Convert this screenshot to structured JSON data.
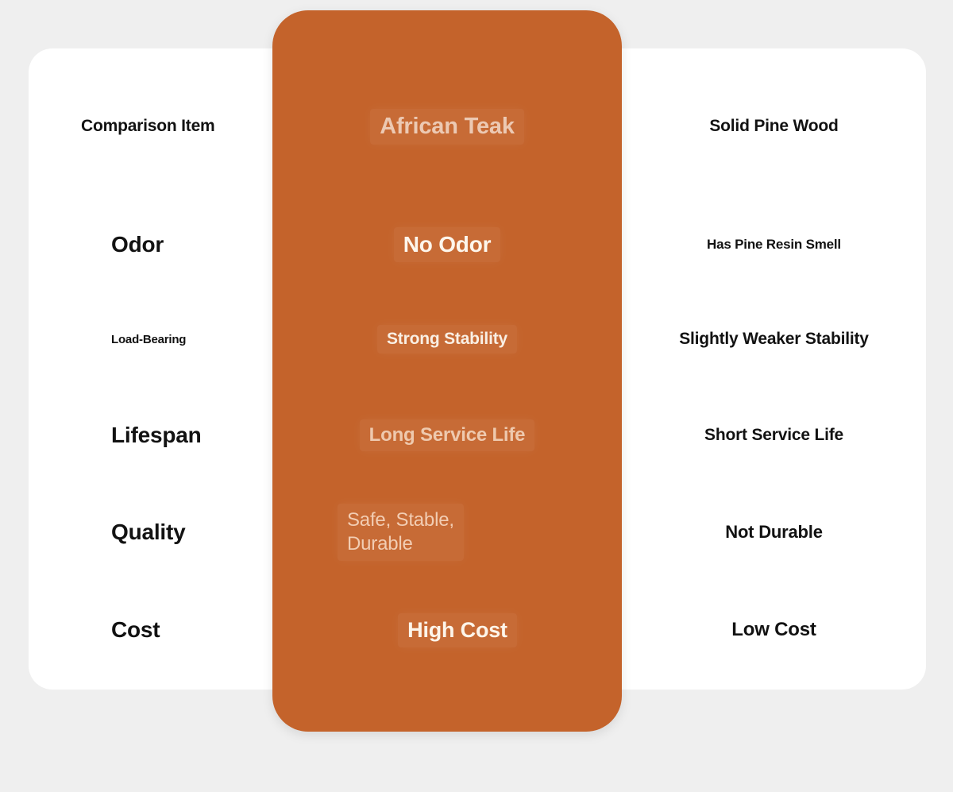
{
  "colors": {
    "background": "#efefef",
    "card": "#ffffff",
    "accent_orange": "#c4632b",
    "teak_text_peach": "#ecc9b3",
    "teak_text_white": "#fdf6ec",
    "dark_text": "#121212"
  },
  "table": {
    "header": {
      "item_col": "Comparison Item",
      "teak_col": "African Teak",
      "pine_col": "Solid Pine Wood"
    },
    "rows": [
      {
        "item": "Odor",
        "teak": "No Odor",
        "pine": "Has Pine Resin Smell"
      },
      {
        "item": "Load-Bearing",
        "teak": "Strong Stability",
        "pine": "Slightly Weaker Stability"
      },
      {
        "item": "Lifespan",
        "teak": "Long Service Life",
        "pine": "Short Service Life"
      },
      {
        "item": "Quality",
        "teak": "Safe, Stable,\nDurable",
        "pine": "Not Durable"
      },
      {
        "item": "Cost",
        "teak": "High Cost",
        "pine": "Low Cost"
      }
    ]
  },
  "chart_data": {
    "type": "table",
    "title": "African Teak vs Solid Pine Wood comparison",
    "columns": [
      "Comparison Item",
      "African Teak",
      "Solid Pine Wood"
    ],
    "rows": [
      [
        "Odor",
        "No Odor",
        "Has Pine Resin Smell"
      ],
      [
        "Load-Bearing",
        "Strong Stability",
        "Slightly Weaker Stability"
      ],
      [
        "Lifespan",
        "Long Service Life",
        "Short Service Life"
      ],
      [
        "Quality",
        "Safe, Stable, Durable",
        "Not Durable"
      ],
      [
        "Cost",
        "High Cost",
        "Low Cost"
      ]
    ],
    "layout_hints": {
      "highlighted_column": "African Teak",
      "highlight_color": "#c4632b",
      "grid": false
    }
  }
}
